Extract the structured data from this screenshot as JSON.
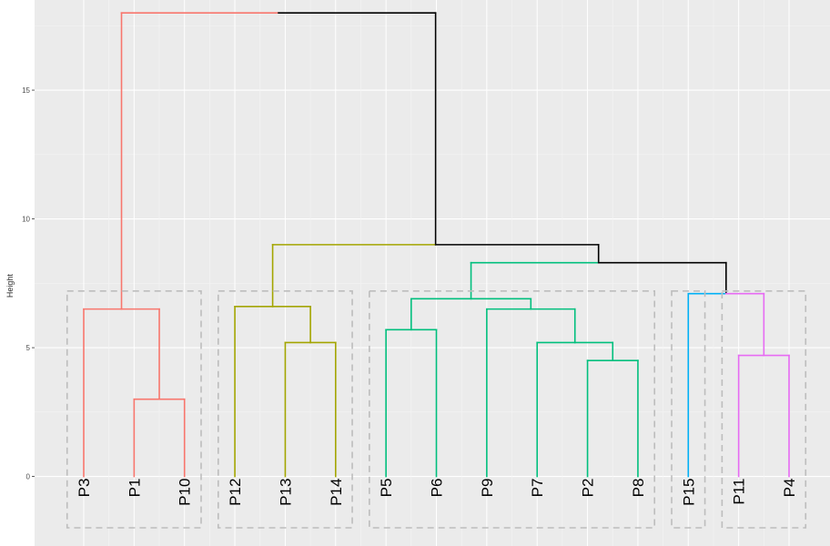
{
  "chart_data": {
    "type": "dendrogram",
    "ylabel": "Height",
    "ylim": [
      -2.7,
      18.5
    ],
    "y_ticks": [
      0,
      5,
      10,
      15
    ],
    "y_tick_labels": [
      "0",
      "5",
      "10",
      "15"
    ],
    "grid": true,
    "leaves": [
      "P3",
      "P1",
      "P10",
      "P12",
      "P13",
      "P14",
      "P5",
      "P6",
      "P9",
      "P7",
      "P2",
      "P8",
      "P15",
      "P11",
      "P4"
    ],
    "merges": [
      {
        "left": "P1",
        "right": "P10",
        "height": 3.0,
        "color": "#f8766d"
      },
      {
        "left": "P3",
        "right": "P1+P10",
        "height": 6.5,
        "color": "#f8766d"
      },
      {
        "left": "P13",
        "right": "P14",
        "height": 5.2,
        "color": "#a3a500"
      },
      {
        "left": "P12",
        "right": "P13+P14",
        "height": 6.6,
        "color": "#a3a500"
      },
      {
        "left": "P5",
        "right": "P6",
        "height": 5.7,
        "color": "#00bf7d"
      },
      {
        "left": "P2",
        "right": "P8",
        "height": 4.5,
        "color": "#00bf7d"
      },
      {
        "left": "P7",
        "right": "P2+P8",
        "height": 5.2,
        "color": "#00bf7d"
      },
      {
        "left": "P9",
        "right": "P7+P2+P8",
        "height": 6.5,
        "color": "#00bf7d"
      },
      {
        "left": "P5+P6",
        "right": "P9+P7+P2+P8",
        "height": 6.9,
        "color": "#00bf7d"
      },
      {
        "left": "P11",
        "right": "P4",
        "height": 4.7,
        "color": "#e76bf3"
      },
      {
        "left": "P15",
        "right": "P11+P4",
        "height": 7.1,
        "color": "#000000"
      },
      {
        "left": "green cluster",
        "right": "P15+P11+P4",
        "height": 8.3,
        "color": "#000000"
      },
      {
        "left": "olive cluster",
        "right": "rest",
        "height": 9.0,
        "color": "#000000"
      },
      {
        "left": "red cluster",
        "right": "rest",
        "height": 18.0,
        "color": "#000000"
      }
    ],
    "clusters": [
      {
        "leaves": [
          "P3",
          "P1",
          "P10"
        ],
        "color": "#f8766d"
      },
      {
        "leaves": [
          "P12",
          "P13",
          "P14"
        ],
        "color": "#a3a500"
      },
      {
        "leaves": [
          "P5",
          "P6",
          "P9",
          "P7",
          "P2",
          "P8"
        ],
        "color": "#00bf7d"
      },
      {
        "leaves": [
          "P15"
        ],
        "color": "#00b0f6"
      },
      {
        "leaves": [
          "P11",
          "P4"
        ],
        "color": "#e76bf3"
      }
    ],
    "cluster_rect_color": "#bdbdbd",
    "panel_background": "#ebebeb"
  }
}
